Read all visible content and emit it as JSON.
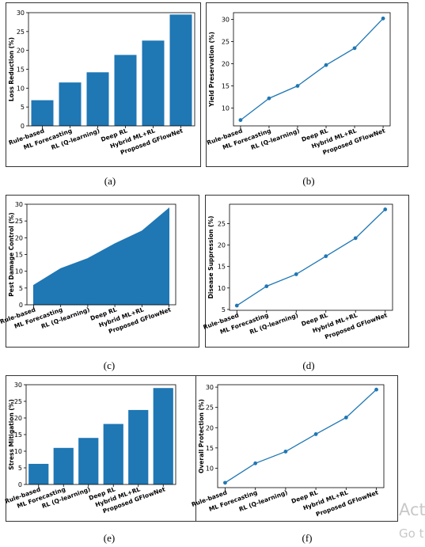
{
  "categories": [
    "Rule-based",
    "ML Forecasting",
    "RL (Q-learning)",
    "Deep RL",
    "Hybrid ML+RL",
    "Proposed GFlowNet"
  ],
  "colors": {
    "bar": "#1f77b4",
    "line": "#1f77b4"
  },
  "captions": [
    "(a)",
    "(b)",
    "(c)",
    "(d)",
    "(e)",
    "(f)"
  ],
  "watermark": {
    "line1": "Act",
    "line2": "Go t"
  },
  "chart_data": [
    {
      "id": "a",
      "type": "bar",
      "ylabel": "Loss Reduction (%)",
      "values": [
        6.8,
        11.5,
        14.2,
        18.8,
        22.6,
        29.5
      ],
      "ylim": [
        0,
        30
      ],
      "yticks": [
        0,
        5,
        10,
        15,
        20,
        25,
        30
      ],
      "xlabel": ""
    },
    {
      "id": "b",
      "type": "line",
      "ylabel": "Yield Preservation (%)",
      "values": [
        7.3,
        12.2,
        15.0,
        19.7,
        23.5,
        30.2
      ],
      "ylim": [
        6,
        31.5
      ],
      "yticks": [
        10,
        15,
        20,
        25,
        30
      ],
      "xlabel": ""
    },
    {
      "id": "c",
      "type": "area",
      "ylabel": "Pest Damage Control (%)",
      "values": [
        5.8,
        10.8,
        13.8,
        18.2,
        22.0,
        28.8
      ],
      "ylim": [
        0,
        30
      ],
      "yticks": [
        0,
        5,
        10,
        15,
        20,
        25,
        30
      ],
      "xlabel": ""
    },
    {
      "id": "d",
      "type": "line",
      "ylabel": "Disease Suppression (%)",
      "values": [
        5.9,
        10.4,
        13.2,
        17.4,
        21.6,
        28.3
      ],
      "ylim": [
        4.8,
        29.5
      ],
      "yticks": [
        5,
        10,
        15,
        20,
        25
      ],
      "xlabel": ""
    },
    {
      "id": "e",
      "type": "bar",
      "ylabel": "Stress Mitigation (%)",
      "values": [
        6.2,
        11.0,
        14.0,
        18.2,
        22.4,
        29.0
      ],
      "ylim": [
        0,
        30
      ],
      "yticks": [
        0,
        5,
        10,
        15,
        20,
        25,
        30
      ],
      "xlabel": ""
    },
    {
      "id": "f",
      "type": "line",
      "ylabel": "Overall Protection (%)",
      "values": [
        6.4,
        11.2,
        14.1,
        18.4,
        22.5,
        29.4
      ],
      "ylim": [
        5.2,
        30.6
      ],
      "yticks": [
        10,
        15,
        20,
        25,
        30
      ],
      "xlabel": ""
    }
  ]
}
